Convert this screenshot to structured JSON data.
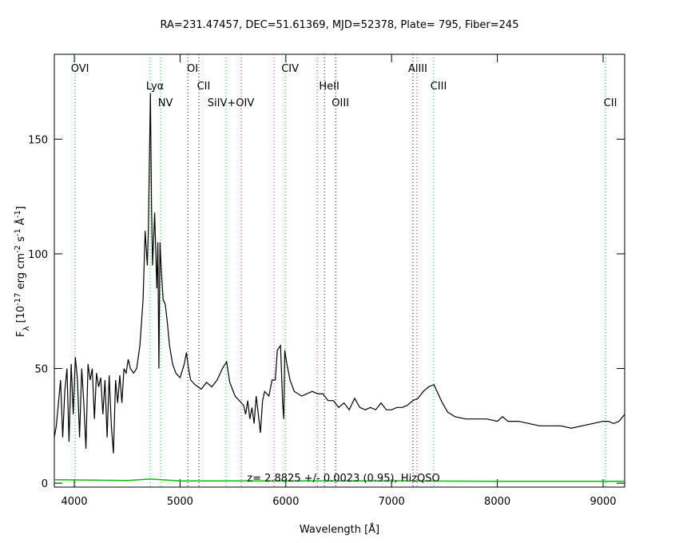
{
  "chart_data": {
    "type": "line",
    "title": "RA=231.47457, DEC=51.61369, MJD=52378, Plate= 795, Fiber=245",
    "xlabel": "Wavelength [Å]",
    "ylabel_parts": [
      {
        "text": "F"
      },
      {
        "text": "λ",
        "shift": "sub"
      },
      {
        "text": " [10"
      },
      {
        "text": "-17",
        "shift": "super"
      },
      {
        "text": " erg cm"
      },
      {
        "text": "-2",
        "shift": "super"
      },
      {
        "text": " s"
      },
      {
        "text": "-1",
        "shift": "super"
      },
      {
        "text": " Å"
      },
      {
        "text": "-1",
        "shift": "super"
      },
      {
        "text": "]"
      }
    ],
    "annotation": "z= 2.8825 +/- 0.0023 (0.95), HizQSO",
    "xlim": [
      3811,
      9204
    ],
    "ylim": [
      -1.7,
      187
    ],
    "xticks": [
      4000,
      5000,
      6000,
      7000,
      8000,
      9000
    ],
    "yticks": [
      0,
      50,
      100,
      150
    ],
    "emission_lines": [
      {
        "label": "OVI",
        "x": 4008,
        "color": "#00cc00"
      },
      {
        "label": "Lyα",
        "x": 4718,
        "color": "#00cc00"
      },
      {
        "label": "NV",
        "x": 4816,
        "color": "#00cc00"
      },
      {
        "label": "OI",
        "x": 5073,
        "color": "#000000"
      },
      {
        "label": "CII",
        "x": 5178,
        "color": "#000000"
      },
      {
        "label": "SiIV+OIV",
        "x": 5435,
        "color": "#00cc00"
      },
      {
        "label": "CIV",
        "x": 5995,
        "color": "#00cc00"
      },
      {
        "label": "HeII",
        "x": 6365,
        "color": "#000000"
      },
      {
        "label": "OIII",
        "x": 6471,
        "color": "#000000"
      },
      {
        "label": "AlIII",
        "x": 7202,
        "color": "#000000"
      },
      {
        "label": "CIII",
        "x": 7399,
        "color": "#00cc00"
      },
      {
        "label": "CII",
        "x": 9023,
        "color": "#00cc00"
      }
    ],
    "absorption_lines": [
      {
        "x": 5579,
        "color": "#cc00cc"
      },
      {
        "x": 5889,
        "color": "#cc00cc"
      },
      {
        "x": 6297,
        "color": "#cc00cc"
      },
      {
        "x": 7240,
        "color": "#cc00cc"
      }
    ],
    "series": [
      {
        "color": "#000000",
        "x": [
          3811,
          3830,
          3850,
          3870,
          3890,
          3910,
          3930,
          3950,
          3970,
          3990,
          4010,
          4030,
          4050,
          4070,
          4090,
          4110,
          4130,
          4150,
          4170,
          4190,
          4210,
          4230,
          4250,
          4270,
          4290,
          4310,
          4330,
          4350,
          4370,
          4390,
          4410,
          4430,
          4450,
          4470,
          4490,
          4510,
          4530,
          4560,
          4590,
          4620,
          4650,
          4670,
          4690,
          4700,
          4710,
          4720,
          4730,
          4740,
          4760,
          4780,
          4790,
          4800,
          4810,
          4820,
          4840,
          4860,
          4880,
          4900,
          4930,
          4960,
          5000,
          5040,
          5060,
          5080,
          5100,
          5140,
          5200,
          5250,
          5300,
          5350,
          5400,
          5440,
          5470,
          5520,
          5560,
          5600,
          5620,
          5640,
          5660,
          5680,
          5700,
          5720,
          5740,
          5760,
          5780,
          5800,
          5840,
          5870,
          5900,
          5920,
          5950,
          5970,
          5980,
          5990,
          6010,
          6040,
          6080,
          6150,
          6200,
          6250,
          6300,
          6350,
          6400,
          6450,
          6500,
          6550,
          6600,
          6650,
          6700,
          6750,
          6800,
          6850,
          6900,
          6950,
          7000,
          7050,
          7100,
          7150,
          7200,
          7250,
          7300,
          7350,
          7400,
          7430,
          7480,
          7530,
          7600,
          7700,
          7800,
          7900,
          8000,
          8050,
          8100,
          8200,
          8300,
          8400,
          8500,
          8600,
          8700,
          8800,
          8900,
          9000,
          9050,
          9100,
          9150,
          9204
        ],
        "values": [
          20,
          25,
          35,
          45,
          20,
          40,
          50,
          18,
          52,
          30,
          55,
          45,
          20,
          50,
          35,
          15,
          52,
          45,
          50,
          28,
          48,
          42,
          46,
          30,
          45,
          20,
          47,
          25,
          13,
          45,
          35,
          47,
          35,
          50,
          48,
          54,
          50,
          48,
          50,
          60,
          80,
          110,
          95,
          110,
          140,
          170,
          120,
          95,
          118,
          85,
          105,
          50,
          105,
          95,
          80,
          78,
          70,
          60,
          52,
          48,
          46,
          52,
          57,
          50,
          45,
          43,
          41,
          44,
          42,
          45,
          50,
          53,
          44,
          38,
          36,
          34,
          30,
          36,
          28,
          33,
          26,
          38,
          30,
          22,
          36,
          40,
          38,
          45,
          45,
          58,
          60,
          35,
          28,
          58,
          52,
          45,
          40,
          38,
          39,
          40,
          39,
          39,
          36,
          36,
          33,
          35,
          32,
          37,
          33,
          32,
          33,
          32,
          35,
          32,
          32,
          33,
          33,
          34,
          36,
          37,
          40,
          42,
          43,
          40,
          35,
          31,
          29,
          28,
          28,
          28,
          27,
          29,
          27,
          27,
          26,
          25,
          25,
          25,
          24,
          25,
          26,
          27,
          27,
          26,
          27,
          30
        ]
      },
      {
        "color": "#00c000",
        "x": [
          3811,
          4500,
          4720,
          5000,
          6000,
          7000,
          8000,
          9204
        ],
        "values": [
          1.5,
          1.2,
          1.8,
          1,
          1,
          1,
          0.8,
          0.8
        ]
      }
    ]
  }
}
